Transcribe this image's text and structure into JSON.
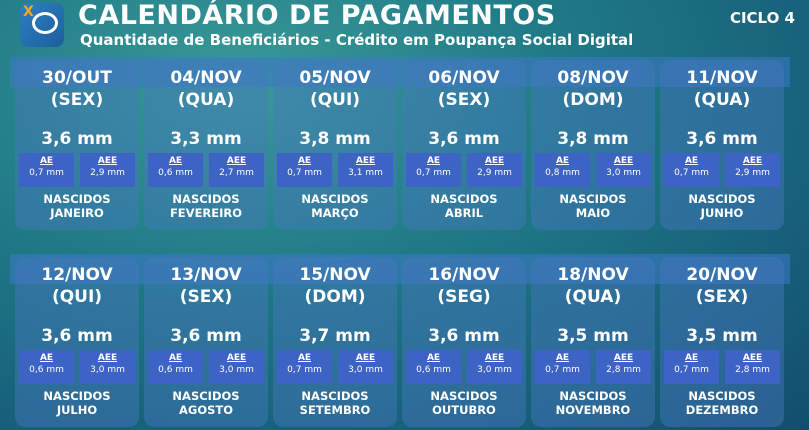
{
  "header": {
    "title": "CALENDÁRIO DE PAGAMENTOS",
    "subtitle": "Quantidade de Beneficiários - Crédito em Poupança Social Digital",
    "cycle": "CICLO 4",
    "logo_text": "X"
  },
  "labels": {
    "ae": "AE",
    "aee": "AEE",
    "born": "NASCIDOS"
  },
  "cards": [
    {
      "date": "30/OUT",
      "day": "(SEX)",
      "total": "3,6 mm",
      "ae": "0,7 mm",
      "aee": "2,9 mm",
      "month": "JANEIRO"
    },
    {
      "date": "04/NOV",
      "day": "(QUA)",
      "total": "3,3 mm",
      "ae": "0,6 mm",
      "aee": "2,7 mm",
      "month": "FEVEREIRO"
    },
    {
      "date": "05/NOV",
      "day": "(QUI)",
      "total": "3,8 mm",
      "ae": "0,7 mm",
      "aee": "3,1 mm",
      "month": "MARÇO"
    },
    {
      "date": "06/NOV",
      "day": "(SEX)",
      "total": "3,6 mm",
      "ae": "0,7 mm",
      "aee": "2,9 mm",
      "month": "ABRIL"
    },
    {
      "date": "08/NOV",
      "day": "(DOM)",
      "total": "3,8 mm",
      "ae": "0,8 mm",
      "aee": "3,0 mm",
      "month": "MAIO"
    },
    {
      "date": "11/NOV",
      "day": "(QUA)",
      "total": "3,6 mm",
      "ae": "0,7 mm",
      "aee": "2,9 mm",
      "month": "JUNHO"
    },
    {
      "date": "12/NOV",
      "day": "(QUI)",
      "total": "3,6 mm",
      "ae": "0,6 mm",
      "aee": "3,0 mm",
      "month": "JULHO"
    },
    {
      "date": "13/NOV",
      "day": "(SEX)",
      "total": "3,6 mm",
      "ae": "0,6 mm",
      "aee": "3,0 mm",
      "month": "AGOSTO"
    },
    {
      "date": "15/NOV",
      "day": "(DOM)",
      "total": "3,7 mm",
      "ae": "0,7 mm",
      "aee": "3,0 mm",
      "month": "SETEMBRO"
    },
    {
      "date": "16/NOV",
      "day": "(SEG)",
      "total": "3,6 mm",
      "ae": "0,6 mm",
      "aee": "3,0 mm",
      "month": "OUTUBRO"
    },
    {
      "date": "18/NOV",
      "day": "(QUA)",
      "total": "3,5 mm",
      "ae": "0,7 mm",
      "aee": "2,8 mm",
      "month": "NOVEMBRO"
    },
    {
      "date": "20/NOV",
      "day": "(SEX)",
      "total": "3,5 mm",
      "ae": "0,7 mm",
      "aee": "2,8 mm",
      "month": "DEZEMBRO"
    }
  ]
}
